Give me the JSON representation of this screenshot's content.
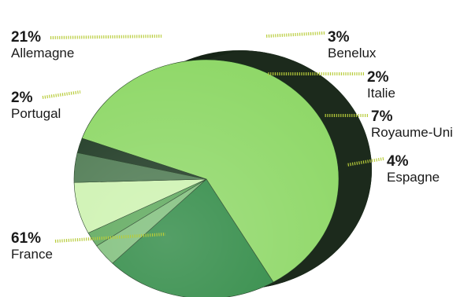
{
  "chart_data": {
    "type": "pie",
    "title": "",
    "unit": "%",
    "slices": [
      {
        "label": "France",
        "value": 61,
        "display": "61%",
        "color": "#8fd868"
      },
      {
        "label": "Allemagne",
        "value": 21,
        "display": "21%",
        "color": "#2f8a45"
      },
      {
        "label": "Benelux",
        "value": 3,
        "display": "3%",
        "color": "#7fbf7b"
      },
      {
        "label": "Italie",
        "value": 2,
        "display": "2%",
        "color": "#5da85b"
      },
      {
        "label": "Royaume-Uni",
        "value": 7,
        "display": "7%",
        "color": "#cdf2b0"
      },
      {
        "label": "Espagne",
        "value": 4,
        "display": "4%",
        "color": "#4e7a52"
      },
      {
        "label": "Portugal",
        "value": 2,
        "display": "2%",
        "color": "#1f3a24"
      }
    ],
    "leader_line_color": "#b8cc3a",
    "edge_color": "#1c2a1c"
  }
}
